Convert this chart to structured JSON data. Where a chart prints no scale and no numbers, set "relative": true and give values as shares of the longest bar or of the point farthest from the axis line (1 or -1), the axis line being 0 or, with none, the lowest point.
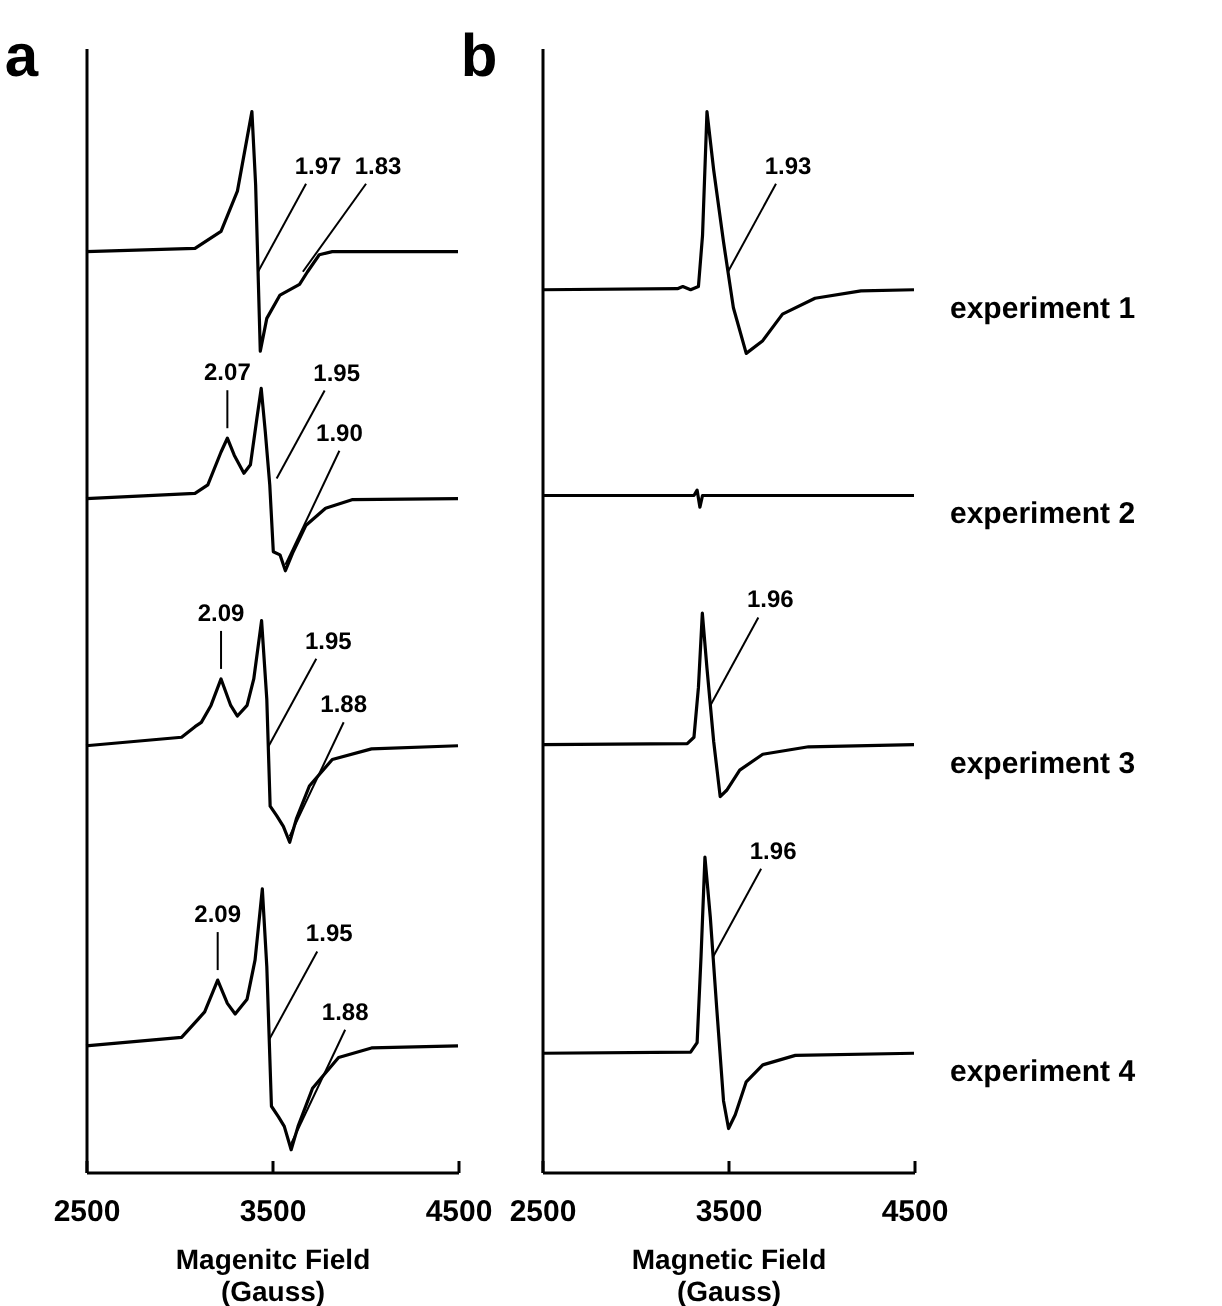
{
  "chart_data": [
    {
      "type": "line",
      "title": "a",
      "xlabel": "Magenitc Field\n(Gauss)",
      "relative": true,
      "xlim": [
        2500,
        4500
      ],
      "xticks": [
        2500,
        3500,
        4500
      ],
      "grid": false,
      "legend": false,
      "marker": "none",
      "line_style": "solid",
      "series": [
        {
          "color": "#000000",
          "x": [
            2500,
            3086,
            3226,
            3314,
            3366,
            3392,
            3412,
            3437,
            3472,
            3543,
            3648,
            3691,
            3754,
            3824,
            4500
          ],
          "values": [
            0.868,
            0.871,
            0.887,
            0.925,
            0.975,
            1.0,
            0.931,
            0.774,
            0.805,
            0.827,
            0.837,
            0.849,
            0.865,
            0.868,
            0.868
          ]
        },
        {
          "color": "#000000",
          "x": [
            2500,
            3086,
            3155,
            3226,
            3260,
            3297,
            3349,
            3384,
            3419,
            3442,
            3464,
            3488,
            3507,
            3543,
            3572,
            3614,
            3683,
            3788,
            3930,
            4500
          ],
          "values": [
            0.635,
            0.64,
            0.648,
            0.679,
            0.692,
            0.676,
            0.659,
            0.667,
            0.711,
            0.739,
            0.698,
            0.648,
            0.585,
            0.582,
            0.567,
            0.585,
            0.61,
            0.626,
            0.634,
            0.635
          ]
        },
        {
          "color": "#000000",
          "x": [
            2500,
            3014,
            3086,
            3120,
            3172,
            3226,
            3278,
            3314,
            3366,
            3402,
            3444,
            3472,
            3490,
            3525,
            3561,
            3595,
            3631,
            3701,
            3824,
            4035,
            4500
          ],
          "values": [
            0.402,
            0.41,
            0.42,
            0.424,
            0.44,
            0.465,
            0.44,
            0.43,
            0.44,
            0.465,
            0.52,
            0.446,
            0.345,
            0.336,
            0.326,
            0.311,
            0.333,
            0.364,
            0.389,
            0.399,
            0.402
          ]
        },
        {
          "color": "#000000",
          "x": [
            2500,
            3014,
            3102,
            3138,
            3208,
            3260,
            3302,
            3366,
            3409,
            3448,
            3472,
            3497,
            3535,
            3566,
            3603,
            3640,
            3718,
            3858,
            4035,
            4500
          ],
          "values": [
            0.119,
            0.127,
            0.144,
            0.151,
            0.181,
            0.159,
            0.149,
            0.163,
            0.2,
            0.267,
            0.194,
            0.062,
            0.052,
            0.043,
            0.021,
            0.043,
            0.079,
            0.108,
            0.117,
            0.119
          ]
        }
      ],
      "annotations": [
        {
          "text": "1.97",
          "x": 3425,
          "y": 0.849
        },
        {
          "text": "1.83",
          "x": 3666,
          "y": 0.849
        },
        {
          "text": "2.07",
          "x": 3260,
          "y": 0.692
        },
        {
          "text": "1.95",
          "x": 3525,
          "y": 0.654
        },
        {
          "text": "1.90",
          "x": 3572,
          "y": 0.567
        },
        {
          "text": "2.09",
          "x": 3226,
          "y": 0.465
        },
        {
          "text": "1.95",
          "x": 3480,
          "y": 0.401
        },
        {
          "text": "1.88",
          "x": 3595,
          "y": 0.311
        },
        {
          "text": "2.09",
          "x": 3208,
          "y": 0.181
        },
        {
          "text": "1.95",
          "x": 3485,
          "y": 0.125
        },
        {
          "text": "1.88",
          "x": 3603,
          "y": 0.021
        }
      ]
    },
    {
      "type": "line",
      "title": "b",
      "xlabel": "Magnetic Field\n(Gauss)",
      "relative": true,
      "xlim": [
        2500,
        4500
      ],
      "xticks": [
        2500,
        3500,
        4500
      ],
      "grid": false,
      "legend": false,
      "marker": "none",
      "line_style": "solid",
      "series": [
        {
          "name": "experiment 1",
          "color": "#000000",
          "x": [
            2500,
            3228,
            3257,
            3299,
            3341,
            3363,
            3387,
            3423,
            3476,
            3529,
            3598,
            3687,
            3793,
            3968,
            4215,
            4500
          ],
          "values": [
            0.832,
            0.833,
            0.835,
            0.832,
            0.835,
            0.883,
            1.0,
            0.945,
            0.877,
            0.815,
            0.772,
            0.784,
            0.809,
            0.824,
            0.831,
            0.832
          ]
        },
        {
          "name": "experiment 2",
          "color": "#000000",
          "x": [
            2500,
            3317,
            3334,
            3349,
            3363,
            4500
          ],
          "values": [
            0.638,
            0.638,
            0.643,
            0.627,
            0.638,
            0.638
          ]
        },
        {
          "name": "experiment 3",
          "color": "#000000",
          "x": [
            2500,
            3281,
            3317,
            3341,
            3362,
            3387,
            3423,
            3458,
            3493,
            3563,
            3687,
            3933,
            4500
          ],
          "values": [
            0.403,
            0.404,
            0.41,
            0.457,
            0.527,
            0.475,
            0.406,
            0.354,
            0.36,
            0.379,
            0.394,
            0.401,
            0.403
          ]
        },
        {
          "name": "experiment 4",
          "color": "#000000",
          "x": [
            2500,
            3299,
            3334,
            3355,
            3376,
            3405,
            3440,
            3476,
            3503,
            3539,
            3598,
            3687,
            3862,
            4500
          ],
          "values": [
            0.112,
            0.113,
            0.122,
            0.203,
            0.297,
            0.24,
            0.153,
            0.067,
            0.041,
            0.054,
            0.085,
            0.101,
            0.11,
            0.112
          ]
        }
      ],
      "annotations": [
        {
          "text": "1.93",
          "x": 3500,
          "y": 0.849
        },
        {
          "text": "1.96",
          "x": 3405,
          "y": 0.44
        },
        {
          "text": "1.96",
          "x": 3420,
          "y": 0.203
        }
      ]
    }
  ]
}
